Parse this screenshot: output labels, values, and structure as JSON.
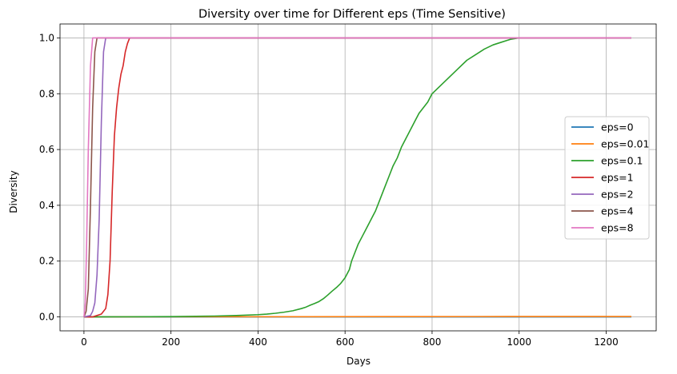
{
  "chart_data": {
    "type": "line",
    "title": "Diversity over time for Different eps (Time Sensitive)",
    "xlabel": "Days",
    "ylabel": "Diversity",
    "xlim": [
      -55,
      1315
    ],
    "ylim": [
      -0.05,
      1.05
    ],
    "xticks": [
      0,
      200,
      400,
      600,
      800,
      1000,
      1200
    ],
    "yticks": [
      0.0,
      0.2,
      0.4,
      0.6,
      0.8,
      1.0
    ],
    "xtick_labels": [
      "0",
      "200",
      "400",
      "600",
      "800",
      "1000",
      "1200"
    ],
    "ytick_labels": [
      "0.0",
      "0.2",
      "0.4",
      "0.6",
      "0.8",
      "1.0"
    ],
    "grid": true,
    "legend_position": "center-right",
    "series": [
      {
        "name": "eps=0",
        "color": "#1f77b4",
        "x": [
          0,
          1258
        ],
        "y": [
          0.0,
          0.0
        ]
      },
      {
        "name": "eps=0.01",
        "color": "#ff7f0e",
        "x": [
          0,
          100,
          300,
          500,
          700,
          900,
          1100,
          1258
        ],
        "y": [
          0.0,
          0.0003,
          0.0005,
          0.0008,
          0.001,
          0.0012,
          0.0014,
          0.0015
        ]
      },
      {
        "name": "eps=0.1",
        "color": "#2ca02c",
        "x": [
          0,
          100,
          200,
          300,
          350,
          400,
          420,
          440,
          460,
          480,
          500,
          510,
          520,
          530,
          540,
          550,
          560,
          570,
          580,
          590,
          600,
          610,
          615,
          620,
          630,
          640,
          650,
          660,
          670,
          680,
          690,
          700,
          710,
          720,
          730,
          740,
          750,
          760,
          770,
          780,
          790,
          800,
          820,
          840,
          860,
          880,
          900,
          920,
          940,
          960,
          980,
          1000,
          1100,
          1258
        ],
        "y": [
          0.0,
          0.0005,
          0.001,
          0.003,
          0.005,
          0.008,
          0.01,
          0.013,
          0.017,
          0.022,
          0.03,
          0.035,
          0.042,
          0.048,
          0.055,
          0.065,
          0.078,
          0.092,
          0.105,
          0.12,
          0.14,
          0.17,
          0.2,
          0.22,
          0.26,
          0.29,
          0.32,
          0.35,
          0.38,
          0.42,
          0.46,
          0.5,
          0.54,
          0.57,
          0.61,
          0.64,
          0.67,
          0.7,
          0.73,
          0.75,
          0.77,
          0.8,
          0.83,
          0.86,
          0.89,
          0.92,
          0.94,
          0.96,
          0.975,
          0.985,
          0.995,
          1.0,
          1.0,
          1.0
        ]
      },
      {
        "name": "eps=1",
        "color": "#d62728",
        "x": [
          0,
          20,
          30,
          40,
          50,
          55,
          60,
          65,
          70,
          75,
          80,
          85,
          90,
          95,
          100,
          105,
          1258
        ],
        "y": [
          0.0,
          0.0,
          0.005,
          0.01,
          0.03,
          0.08,
          0.2,
          0.45,
          0.65,
          0.75,
          0.82,
          0.87,
          0.9,
          0.95,
          0.98,
          1.0,
          1.0
        ]
      },
      {
        "name": "eps=2",
        "color": "#9467bd",
        "x": [
          0,
          15,
          20,
          25,
          30,
          35,
          40,
          45,
          50,
          1258
        ],
        "y": [
          0.0,
          0.005,
          0.02,
          0.05,
          0.15,
          0.35,
          0.7,
          0.95,
          1.0,
          1.0
        ]
      },
      {
        "name": "eps=4",
        "color": "#8c564b",
        "x": [
          0,
          5,
          10,
          15,
          20,
          25,
          30,
          1258
        ],
        "y": [
          0.0,
          0.02,
          0.1,
          0.4,
          0.75,
          0.95,
          1.0,
          1.0
        ]
      },
      {
        "name": "eps=8",
        "color": "#e377c2",
        "x": [
          0,
          3,
          6,
          10,
          15,
          20,
          25,
          1258
        ],
        "y": [
          0.0,
          0.05,
          0.25,
          0.6,
          0.9,
          1.0,
          1.0,
          1.0
        ]
      }
    ]
  }
}
